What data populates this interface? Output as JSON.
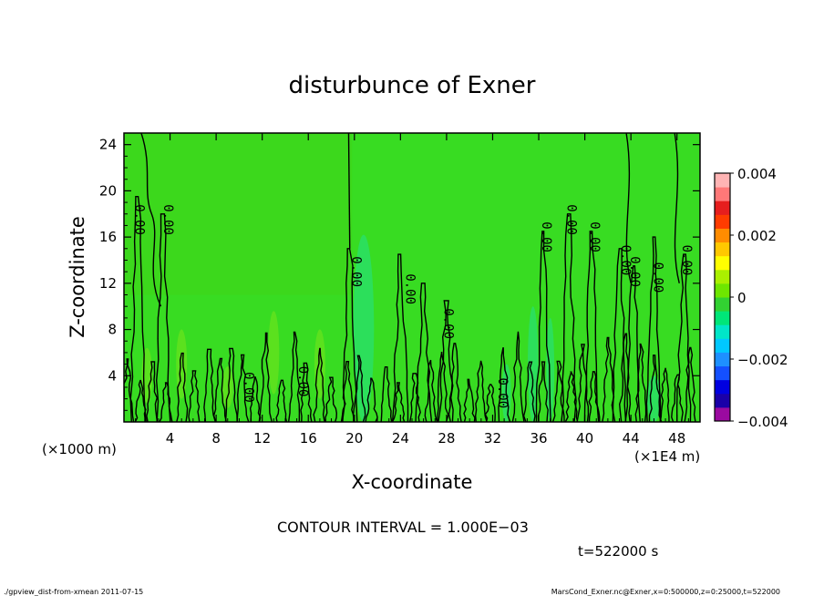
{
  "chart_data": {
    "type": "heatmap",
    "title": "disturbunce of Exner",
    "xlabel": "X-coordinate",
    "ylabel": "Z-coordinate",
    "x_unit_left": "(×1000 m)",
    "x_unit_right": "(×1E4 m)",
    "xlim": [
      0,
      50
    ],
    "ylim": [
      0,
      25
    ],
    "x_ticks": [
      4,
      8,
      12,
      16,
      20,
      24,
      28,
      32,
      36,
      40,
      44,
      48
    ],
    "y_ticks": [
      4,
      8,
      12,
      16,
      20,
      24
    ],
    "colorbar": {
      "range": [
        -0.004,
        0.004
      ],
      "ticks": [
        {
          "value": 0.004,
          "label": "0.004"
        },
        {
          "value": 0.002,
          "label": "0.002"
        },
        {
          "value": 0,
          "label": "0"
        },
        {
          "value": -0.002,
          "label": "−0.002"
        },
        {
          "value": -0.004,
          "label": "−0.004"
        }
      ],
      "colors": [
        "#9b0aa0",
        "#1a00a8",
        "#0000e0",
        "#1450ff",
        "#1e90ff",
        "#00c8ff",
        "#00e6c8",
        "#00e678",
        "#32d232",
        "#6ee600",
        "#aaf000",
        "#ffff00",
        "#ffc800",
        "#ff8c00",
        "#ff3c00",
        "#e61e1e",
        "#ff7878",
        "#ffb4b4"
      ]
    },
    "contour_labels": [
      {
        "x": 1.0,
        "z": 17.5,
        "text": "0.00"
      },
      {
        "x": 3.5,
        "z": 17.5,
        "text": "0.00"
      },
      {
        "x": 19.8,
        "z": 13.0,
        "text": "0.00"
      },
      {
        "x": 24.5,
        "z": 11.5,
        "text": "0.00"
      },
      {
        "x": 27.8,
        "z": 8.5,
        "text": "0.00"
      },
      {
        "x": 10.5,
        "z": 3.0,
        "text": "0.00"
      },
      {
        "x": 15.2,
        "z": 3.5,
        "text": "0.00"
      },
      {
        "x": 32.5,
        "z": 2.5,
        "text": "0.00"
      },
      {
        "x": 36.3,
        "z": 16.0,
        "text": "0.00"
      },
      {
        "x": 38.5,
        "z": 17.5,
        "text": "0.00"
      },
      {
        "x": 40.5,
        "z": 16.0,
        "text": "0.00"
      },
      {
        "x": 43.2,
        "z": 14.0,
        "text": "0.00"
      },
      {
        "x": 44.0,
        "z": 13.0,
        "text": "0.00"
      },
      {
        "x": 46.0,
        "z": 12.5,
        "text": "0.00"
      },
      {
        "x": 48.5,
        "z": 14.0,
        "text": "0.00"
      }
    ],
    "contour_interval": "CONTOUR INTERVAL = 1.000E−03",
    "time_label": "t=522000 s"
  },
  "footer": {
    "left": "./gpview_dist-from-xmean  2011-07-15",
    "right": "MarsCond_Exner.nc@Exner,x=0:500000,z=0:25000,t=522000"
  },
  "colors": {
    "field_base": "#38dc22",
    "field_upper_left": "#3cd81c",
    "field_cyan": "#22e28a",
    "contour": "#000000"
  }
}
